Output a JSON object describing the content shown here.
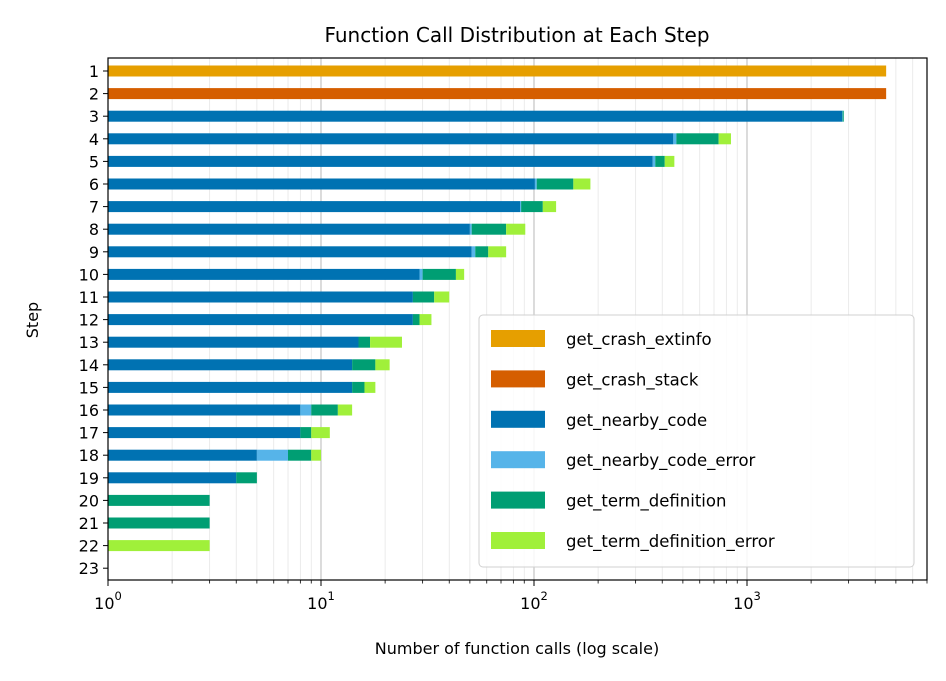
{
  "chart_data": {
    "type": "bar",
    "orientation": "horizontal",
    "stacked": true,
    "title": "Function Call Distribution at Each Step",
    "xlabel": "Number of function calls (log scale)",
    "ylabel": "Step",
    "xscale": "log",
    "xlim": [
      1,
      7000
    ],
    "x_ticks": [
      {
        "base": "10",
        "exp": "0",
        "value": 1
      },
      {
        "base": "10",
        "exp": "1",
        "value": 10
      },
      {
        "base": "10",
        "exp": "2",
        "value": 100
      },
      {
        "base": "10",
        "exp": "3",
        "value": 1000
      }
    ],
    "grid": true,
    "legend_position": "lower-right",
    "categories": [
      "1",
      "2",
      "3",
      "4",
      "5",
      "6",
      "7",
      "8",
      "9",
      "10",
      "11",
      "12",
      "13",
      "14",
      "15",
      "16",
      "17",
      "18",
      "19",
      "20",
      "21",
      "22",
      "23"
    ],
    "series": [
      {
        "name": "get_crash_extinfo",
        "color": "#E69F00",
        "values": [
          4500,
          0,
          0,
          0,
          0,
          0,
          0,
          0,
          0,
          0,
          0,
          0,
          0,
          0,
          0,
          0,
          0,
          0,
          0,
          0,
          0,
          0,
          0
        ]
      },
      {
        "name": "get_crash_stack",
        "color": "#D55E00",
        "values": [
          0,
          4500,
          0,
          0,
          0,
          0,
          0,
          0,
          0,
          0,
          0,
          0,
          0,
          0,
          0,
          0,
          0,
          0,
          0,
          0,
          0,
          0,
          0
        ]
      },
      {
        "name": "get_nearby_code",
        "color": "#0072B2",
        "values": [
          0,
          0,
          2800,
          450,
          360,
          100,
          85,
          49,
          50,
          28,
          26,
          26,
          14,
          13,
          13,
          7,
          7,
          4,
          3,
          0,
          0,
          0,
          0
        ]
      },
      {
        "name": "get_nearby_code_error",
        "color": "#56B4E9",
        "values": [
          0,
          0,
          10,
          15,
          10,
          2,
          1,
          1,
          2,
          1,
          0,
          0,
          0,
          0,
          0,
          1,
          0,
          2,
          0,
          0,
          0,
          0,
          0
        ]
      },
      {
        "name": "get_term_definition",
        "color": "#009E73",
        "values": [
          0,
          0,
          35,
          270,
          40,
          50,
          23,
          23,
          8,
          13,
          7,
          2,
          2,
          4,
          2,
          3,
          1,
          2,
          1,
          2,
          2,
          0,
          0
        ]
      },
      {
        "name": "get_term_definition_error",
        "color": "#A0F03A",
        "values": [
          0,
          0,
          0,
          105,
          45,
          31,
          17,
          17,
          13,
          4,
          6,
          4,
          7,
          3,
          2,
          2,
          2,
          1,
          0,
          0,
          0,
          2,
          0
        ]
      }
    ]
  }
}
